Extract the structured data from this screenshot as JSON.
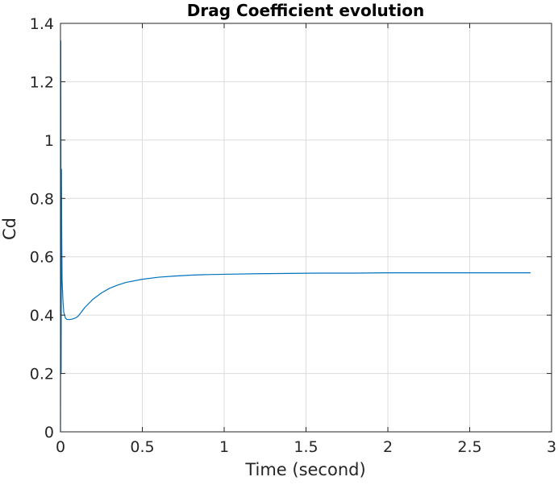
{
  "chart_data": {
    "type": "line",
    "title": "Drag Coefficient evolution",
    "xlabel": "Time (second)",
    "ylabel": "Cd",
    "xlim": [
      0,
      3
    ],
    "ylim": [
      0,
      1.4
    ],
    "xticks": [
      0,
      0.5,
      1,
      1.5,
      2,
      2.5,
      3
    ],
    "xtick_labels": [
      "0",
      "0.5",
      "1",
      "1.5",
      "2",
      "2.5",
      "3"
    ],
    "yticks": [
      0,
      0.2,
      0.4,
      0.6,
      0.8,
      1,
      1.2,
      1.4
    ],
    "ytick_labels": [
      "0",
      "0.2",
      "0.4",
      "0.6",
      "0.8",
      "1",
      "1.2",
      "1.4"
    ],
    "grid": true,
    "box": true,
    "series": [
      {
        "color": "#0072BD",
        "x": [
          0,
          0.002,
          0.004,
          0.006,
          0.008,
          0.01,
          0.015,
          0.02,
          0.03,
          0.04,
          0.05,
          0.06,
          0.07,
          0.08,
          0.09,
          0.1,
          0.11,
          0.12,
          0.15,
          0.2,
          0.25,
          0.3,
          0.35,
          0.4,
          0.5,
          0.6,
          0.7,
          0.8,
          0.9,
          1.0,
          1.2,
          1.4,
          1.6,
          1.8,
          2.0,
          2.2,
          2.4,
          2.6,
          2.87
        ],
        "y": [
          0.0,
          1.34,
          0.2,
          0.9,
          0.65,
          0.52,
          0.45,
          0.41,
          0.39,
          0.385,
          0.385,
          0.385,
          0.386,
          0.388,
          0.39,
          0.393,
          0.398,
          0.405,
          0.427,
          0.455,
          0.476,
          0.492,
          0.503,
          0.512,
          0.523,
          0.53,
          0.534,
          0.537,
          0.539,
          0.54,
          0.542,
          0.543,
          0.544,
          0.544,
          0.545,
          0.545,
          0.545,
          0.545,
          0.545
        ]
      }
    ]
  }
}
